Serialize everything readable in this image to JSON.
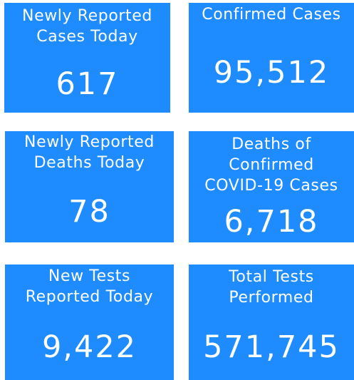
{
  "cards": [
    {
      "label_lines": [
        "Newly Reported",
        "Cases Today"
      ],
      "value": "617"
    },
    {
      "label_lines": [
        "Confirmed Cases"
      ],
      "value": "95,512"
    },
    {
      "label_lines": [
        "Newly Reported",
        "Deaths Today"
      ],
      "value": "78"
    },
    {
      "label_lines": [
        "Deaths of",
        "Confirmed",
        "COVID-19 Cases"
      ],
      "value": "6,718"
    },
    {
      "label_lines": [
        "New Tests",
        "Reported Today"
      ],
      "value": "9,422"
    },
    {
      "label_lines": [
        "Total Tests",
        "Performed"
      ],
      "value": "571,745"
    }
  ],
  "colors": {
    "card_background": "#1e8cff",
    "text": "#ffffff",
    "page_background": "#ffffff"
  }
}
